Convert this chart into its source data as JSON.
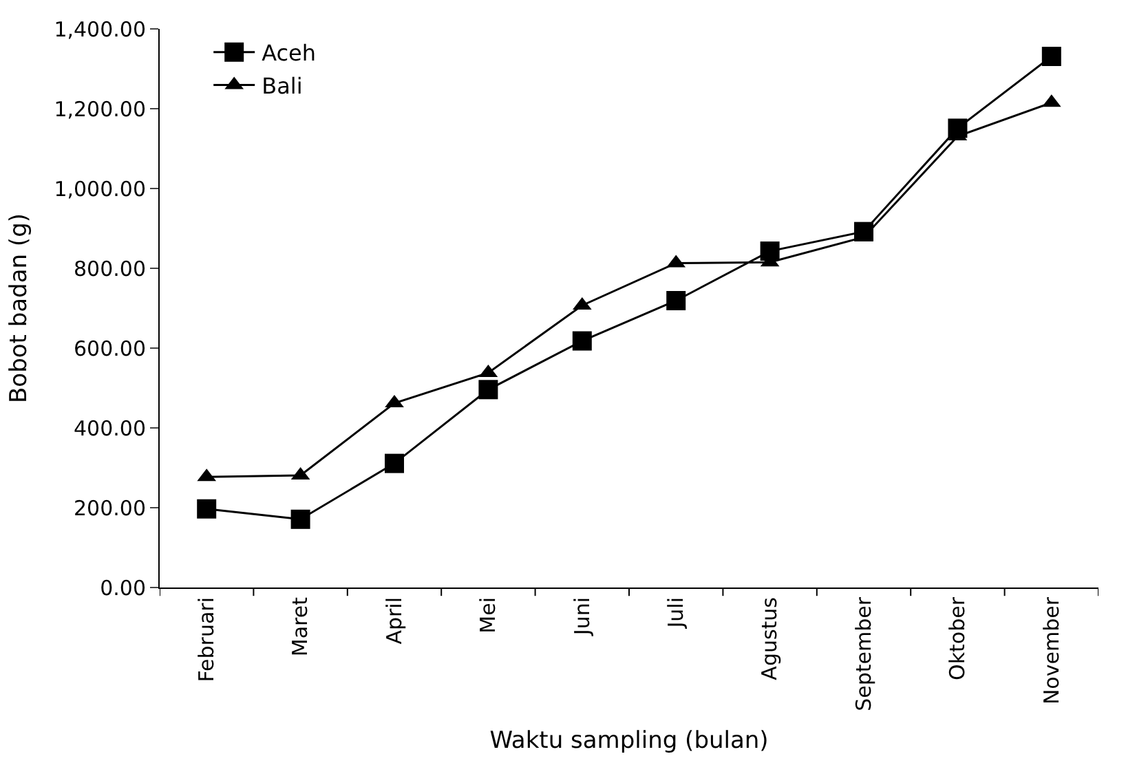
{
  "chart_data": {
    "type": "line",
    "xlabel": "Waktu sampling (bulan)",
    "ylabel": "Bobot badan (g)",
    "categories": [
      "Februari",
      "Maret",
      "April",
      "Mei",
      "Juni",
      "Juli",
      "Agustus",
      "September",
      "Oktober",
      "November"
    ],
    "series": [
      {
        "name": "Aceh",
        "color": "#000000",
        "marker": "square",
        "values": [
          197,
          171,
          311,
          496,
          618,
          719,
          843,
          892,
          1151,
          1331
        ]
      },
      {
        "name": "Bali",
        "color": "#000000",
        "marker": "triangle",
        "values": [
          277,
          281,
          462,
          538,
          707,
          813,
          815,
          878,
          1131,
          1215
        ]
      }
    ],
    "ylim": [
      0,
      1400
    ],
    "yticks": [
      {
        "value": 0,
        "label": "0.00"
      },
      {
        "value": 200,
        "label": "200.00"
      },
      {
        "value": 400,
        "label": "400.00"
      },
      {
        "value": 600,
        "label": "600.00"
      },
      {
        "value": 800,
        "label": "800.00"
      },
      {
        "value": 1000,
        "label": "1,000.00"
      },
      {
        "value": 1200,
        "label": "1,200.00"
      },
      {
        "value": 1400,
        "label": "1,400.00"
      }
    ],
    "legend": "top left",
    "line_style": "solid"
  }
}
